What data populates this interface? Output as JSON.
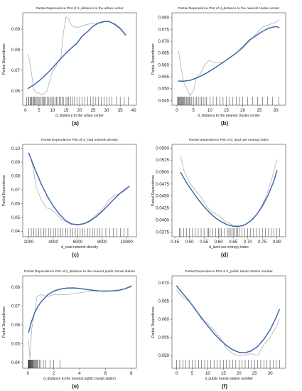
{
  "colors": {
    "smooth": "#3e69ab",
    "raw": "#b0b0b0",
    "axis": "#444444",
    "rug": "#111111"
  },
  "panel_letters": [
    "(a)",
    "(b)",
    "(c)",
    "(d)",
    "(e)",
    "(f)"
  ],
  "chart_data": [
    {
      "type": "line",
      "title": "Partial Dependence Plot of d_distance to the urban center",
      "xlabel": "d_distance to the urban center",
      "ylabel": "Partial Dependence",
      "xlim": [
        -1,
        41
      ],
      "ylim": [
        0.053,
        0.098
      ],
      "xticks": [
        0,
        5,
        10,
        15,
        20,
        25,
        30,
        35,
        40
      ],
      "yticks": [
        0.06,
        0.07,
        0.08,
        0.09
      ],
      "ytick_labels": [
        "0.06",
        "0.07",
        "0.08",
        "0.09"
      ],
      "grid": false,
      "series": [
        {
          "role": "raw",
          "x": [
            1,
            2,
            3,
            4,
            5,
            6,
            7,
            8,
            9,
            10,
            11,
            12,
            13,
            14,
            15,
            16,
            17,
            18,
            20,
            22,
            25,
            28,
            30,
            32,
            35,
            37
          ],
          "values": [
            0.078,
            0.071,
            0.061,
            0.059,
            0.059,
            0.058,
            0.059,
            0.06,
            0.065,
            0.07,
            0.071,
            0.074,
            0.075,
            0.088,
            0.096,
            0.095,
            0.092,
            0.091,
            0.091,
            0.092,
            0.093,
            0.093,
            0.094,
            0.093,
            0.09,
            0.087
          ]
        },
        {
          "role": "smooth",
          "x": [
            1,
            3,
            5,
            7,
            9,
            11,
            13,
            15,
            17,
            19,
            21,
            23,
            25,
            27,
            29,
            31,
            33,
            35,
            37
          ],
          "values": [
            0.0612,
            0.0628,
            0.0648,
            0.0672,
            0.0698,
            0.0727,
            0.0756,
            0.0784,
            0.0809,
            0.0831,
            0.0867,
            0.0889,
            0.0915,
            0.093,
            0.0938,
            0.0937,
            0.0925,
            0.0905,
            0.0872
          ]
        }
      ],
      "rug": [
        0.5,
        1,
        1.3,
        1.8,
        2,
        2.3,
        2.7,
        3,
        3.4,
        3.8,
        4,
        4.5,
        5,
        5.3,
        5.8,
        6.2,
        6.7,
        7,
        7.5,
        8,
        8.5,
        9,
        9.5,
        10,
        10.5,
        11,
        11.5,
        12,
        12.5,
        13,
        13.5,
        14,
        15,
        15.5,
        16,
        16.7,
        17.5,
        18,
        19,
        20,
        21,
        22,
        23,
        24,
        25,
        26,
        27,
        28,
        29,
        30,
        31,
        32,
        33.5,
        35,
        36.5,
        38
      ]
    },
    {
      "type": "line",
      "title": "Partial Dependence Plot of d_distance to the nearest cluster center",
      "xlabel": "d_distance to the nearest cluster center",
      "ylabel": "Partial Dependence",
      "xlim": [
        -1.5,
        33
      ],
      "ylim": [
        0.043,
        0.082
      ],
      "xticks": [
        0,
        5,
        10,
        15,
        20,
        25,
        30
      ],
      "yticks": [
        0.045,
        0.05,
        0.055,
        0.06,
        0.065,
        0.07,
        0.075,
        0.08
      ],
      "ytick_labels": [
        "0.045",
        "0.050",
        "0.055",
        "0.060",
        "0.065",
        "0.070",
        "0.075",
        "0.080"
      ],
      "grid": false,
      "series": [
        {
          "role": "raw",
          "x": [
            0.5,
            1,
            2,
            3,
            4,
            5,
            6,
            7,
            8,
            9,
            10,
            11,
            12,
            14,
            16,
            18,
            20,
            22,
            24,
            26,
            28,
            30,
            31
          ],
          "values": [
            0.066,
            0.061,
            0.053,
            0.05,
            0.047,
            0.049,
            0.055,
            0.056,
            0.059,
            0.061,
            0.062,
            0.061,
            0.061,
            0.061,
            0.063,
            0.065,
            0.067,
            0.07,
            0.073,
            0.076,
            0.077,
            0.078,
            0.079
          ]
        },
        {
          "role": "smooth",
          "x": [
            0.5,
            2,
            4,
            6,
            8,
            10,
            12,
            14,
            16,
            18,
            20,
            22,
            24,
            26,
            28,
            30,
            31
          ],
          "values": [
            0.0532,
            0.0531,
            0.0535,
            0.0545,
            0.0558,
            0.0574,
            0.0592,
            0.0611,
            0.063,
            0.065,
            0.0675,
            0.0705,
            0.0723,
            0.0742,
            0.0756,
            0.0762,
            0.0758
          ]
        }
      ],
      "rug": [
        0.2,
        0.4,
        0.6,
        0.8,
        1,
        1.2,
        1.4,
        1.6,
        1.8,
        2,
        2.3,
        2.6,
        2.9,
        3.2,
        3.5,
        3.8,
        4.1,
        4.5,
        5,
        5.5,
        6,
        6.5,
        7,
        7.5,
        8,
        8.5,
        9,
        10,
        11,
        12,
        13,
        14,
        15,
        16,
        17,
        18,
        19,
        20,
        21.5,
        23,
        24.5,
        26,
        27.5,
        29,
        31
      ]
    },
    {
      "type": "line",
      "title": "Partial Dependence Plot of d_road network density",
      "xlabel": "d_road network density",
      "ylabel": "Partial Dependence",
      "xlim": [
        1500,
        10800
      ],
      "ylim": [
        0.036,
        0.103
      ],
      "xticks": [
        2000,
        4000,
        6000,
        8000,
        10000
      ],
      "yticks": [
        0.04,
        0.05,
        0.06,
        0.07,
        0.08,
        0.09,
        0.1
      ],
      "ytick_labels": [
        "0.04",
        "0.05",
        "0.06",
        "0.07",
        "0.08",
        "0.09",
        "0.10"
      ],
      "grid": false,
      "series": [
        {
          "role": "raw",
          "x": [
            2000,
            2300,
            2600,
            3000,
            3400,
            3800,
            4200,
            4600,
            5000,
            5400,
            5800,
            6200,
            6600,
            7000,
            7400,
            7800,
            8200,
            8600,
            9000,
            9400,
            9800,
            10200
          ],
          "values": [
            0.097,
            0.088,
            0.072,
            0.063,
            0.057,
            0.056,
            0.053,
            0.049,
            0.047,
            0.045,
            0.045,
            0.045,
            0.046,
            0.048,
            0.051,
            0.054,
            0.058,
            0.063,
            0.066,
            0.067,
            0.069,
            0.072
          ]
        },
        {
          "role": "smooth",
          "x": [
            2000,
            2500,
            3000,
            3500,
            4000,
            4500,
            5000,
            5500,
            6000,
            6500,
            7000,
            7500,
            8000,
            8500,
            9000,
            9500,
            10200
          ],
          "values": [
            0.0965,
            0.085,
            0.0745,
            0.0655,
            0.0582,
            0.0523,
            0.0478,
            0.0453,
            0.0447,
            0.0454,
            0.0474,
            0.0505,
            0.0544,
            0.0589,
            0.0636,
            0.0678,
            0.0725
          ]
        }
      ],
      "rug": [
        2000,
        2200,
        2400,
        2600,
        2800,
        3000,
        3200,
        3400,
        3600,
        3800,
        4000,
        4200,
        4400,
        4600,
        4800,
        5000,
        5200,
        5400,
        5600,
        5800,
        6000,
        6200,
        6400,
        6600,
        6800,
        7000,
        7200,
        7400,
        7600,
        7800,
        8000,
        8300,
        8600,
        8900,
        9200,
        9500,
        9800,
        10100
      ]
    },
    {
      "type": "line",
      "title": "Partial Dependence Plot of d_land use entropy index",
      "xlabel": "d_land use entropy index",
      "ylabel": "Partial Dependence",
      "xlim": [
        0.44,
        0.83
      ],
      "ylim": [
        0.0365,
        0.0558
      ],
      "xticks": [
        0.45,
        0.5,
        0.55,
        0.6,
        0.65,
        0.7,
        0.75,
        0.8
      ],
      "xtick_labels": [
        "0.45",
        "0.50",
        "0.55",
        "0.60",
        "0.65",
        "0.70",
        "0.75",
        "0.80"
      ],
      "yticks": [
        0.0375,
        0.04,
        0.0425,
        0.045,
        0.0475,
        0.05,
        0.0525,
        0.055
      ],
      "ytick_labels": [
        "0.0375",
        "0.0400",
        "0.0425",
        "0.0450",
        "0.0475",
        "0.0500",
        "0.0525",
        "0.0550"
      ],
      "grid": false,
      "series": [
        {
          "role": "raw",
          "x": [
            0.47,
            0.48,
            0.5,
            0.52,
            0.54,
            0.56,
            0.58,
            0.6,
            0.62,
            0.64,
            0.65,
            0.66,
            0.68,
            0.7,
            0.72,
            0.74,
            0.76,
            0.78,
            0.8
          ],
          "values": [
            0.0532,
            0.0505,
            0.0478,
            0.0462,
            0.0448,
            0.0428,
            0.0415,
            0.041,
            0.0398,
            0.0392,
            0.0388,
            0.0384,
            0.0386,
            0.0393,
            0.0402,
            0.042,
            0.0445,
            0.048,
            0.0526
          ]
        },
        {
          "role": "smooth",
          "x": [
            0.47,
            0.49,
            0.51,
            0.53,
            0.55,
            0.57,
            0.59,
            0.61,
            0.63,
            0.65,
            0.67,
            0.69,
            0.71,
            0.73,
            0.75,
            0.77,
            0.79,
            0.8
          ],
          "values": [
            0.0499,
            0.0478,
            0.046,
            0.0443,
            0.0428,
            0.0415,
            0.0404,
            0.0396,
            0.039,
            0.0387,
            0.0387,
            0.039,
            0.0398,
            0.0411,
            0.0429,
            0.0452,
            0.0482,
            0.0503
          ]
        }
      ],
      "rug": [
        0.465,
        0.47,
        0.48,
        0.49,
        0.5,
        0.51,
        0.52,
        0.53,
        0.54,
        0.55,
        0.56,
        0.565,
        0.57,
        0.58,
        0.59,
        0.6,
        0.605,
        0.61,
        0.62,
        0.63,
        0.635,
        0.64,
        0.645,
        0.65,
        0.655,
        0.66,
        0.665,
        0.67,
        0.68,
        0.69,
        0.7,
        0.71,
        0.72,
        0.73,
        0.74,
        0.75,
        0.76,
        0.77,
        0.78,
        0.79,
        0.8,
        0.81
      ]
    },
    {
      "type": "line",
      "title": "Partial Dependence Plot of d_distance to the nearest public transit station",
      "xlabel": "d_distance to the nearest public transit station",
      "ylabel": "Partial Dependence",
      "xlim": [
        -0.4,
        8.4
      ],
      "ylim": [
        0.037,
        0.086
      ],
      "xticks": [
        0,
        2,
        4,
        6,
        8
      ],
      "yticks": [
        0.04,
        0.05,
        0.06,
        0.07,
        0.08
      ],
      "ytick_labels": [
        "0.04",
        "0.05",
        "0.06",
        "0.07",
        "0.08"
      ],
      "grid": false,
      "series": [
        {
          "role": "raw",
          "x": [
            0.05,
            0.15,
            0.3,
            0.5,
            0.7,
            1,
            1.5,
            2,
            3,
            4,
            5,
            6,
            7,
            7.5,
            8
          ],
          "values": [
            0.052,
            0.042,
            0.058,
            0.066,
            0.075,
            0.076,
            0.075,
            0.076,
            0.076,
            0.077,
            0.078,
            0.078,
            0.078,
            0.079,
            0.08
          ]
        },
        {
          "role": "smooth",
          "x": [
            0.05,
            0.25,
            0.5,
            0.75,
            1,
            1.5,
            2,
            2.5,
            3,
            3.5,
            4,
            4.5,
            5,
            5.5,
            6,
            6.5,
            7,
            7.5,
            8
          ],
          "values": [
            0.056,
            0.061,
            0.066,
            0.0695,
            0.072,
            0.0757,
            0.0779,
            0.079,
            0.0795,
            0.0796,
            0.0793,
            0.0788,
            0.0784,
            0.078,
            0.0779,
            0.078,
            0.0783,
            0.0791,
            0.0806
          ]
        }
      ],
      "rug": [
        0.02,
        0.05,
        0.08,
        0.1,
        0.12,
        0.15,
        0.18,
        0.2,
        0.23,
        0.26,
        0.3,
        0.33,
        0.37,
        0.4,
        0.45,
        0.5,
        0.55,
        0.6,
        0.66,
        0.72,
        0.8,
        0.9,
        1,
        1.2,
        1.4,
        1.7,
        2,
        2.5
      ]
    },
    {
      "type": "line",
      "title": "Partial Dependence Plot of d_public transit station number",
      "xlabel": "d_public transit station number",
      "ylabel": "Partial Dependence",
      "xlim": [
        -1.5,
        35
      ],
      "ylim": [
        0.0465,
        0.072
      ],
      "xticks": [
        0,
        5,
        10,
        15,
        20,
        25,
        30
      ],
      "yticks": [
        0.05,
        0.055,
        0.06,
        0.065,
        0.07
      ],
      "ytick_labels": [
        "0.050",
        "0.055",
        "0.060",
        "0.065",
        "0.070"
      ],
      "grid": false,
      "series": [
        {
          "role": "raw",
          "x": [
            0,
            2,
            4,
            6,
            8,
            10,
            12,
            14,
            16,
            18,
            20,
            22,
            24,
            26,
            28,
            30,
            32,
            33
          ],
          "values": [
            0.068,
            0.066,
            0.065,
            0.063,
            0.06,
            0.059,
            0.057,
            0.055,
            0.052,
            0.0505,
            0.05,
            0.0502,
            0.0505,
            0.05,
            0.053,
            0.055,
            0.058,
            0.06
          ]
        },
        {
          "role": "smooth",
          "x": [
            0,
            2,
            4,
            6,
            8,
            10,
            12,
            14,
            16,
            18,
            20,
            22,
            24,
            26,
            28,
            30,
            32,
            33
          ],
          "values": [
            0.0692,
            0.0671,
            0.0651,
            0.0627,
            0.0604,
            0.0582,
            0.0561,
            0.0543,
            0.0528,
            0.0516,
            0.0509,
            0.0508,
            0.0513,
            0.0525,
            0.0545,
            0.0571,
            0.0606,
            0.0627
          ]
        }
      ],
      "rug": [
        0,
        1,
        2,
        3,
        4,
        5,
        6,
        7,
        8,
        9,
        10,
        11,
        12,
        13,
        14,
        15,
        16,
        17,
        18,
        19,
        20,
        21,
        22,
        23,
        24,
        25,
        26,
        27,
        28,
        29,
        30,
        31,
        32,
        33
      ]
    }
  ]
}
